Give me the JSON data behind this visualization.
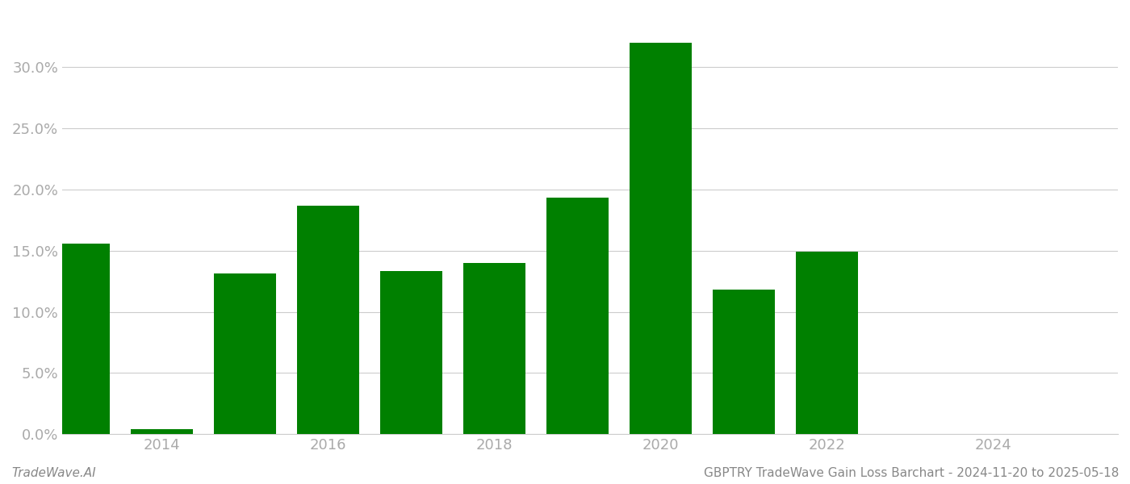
{
  "years": [
    2013,
    2014,
    2015,
    2016,
    2017,
    2018,
    2019,
    2020,
    2021,
    2022,
    2023,
    2024
  ],
  "values": [
    0.156,
    0.004,
    0.131,
    0.187,
    0.133,
    0.14,
    0.193,
    0.32,
    0.118,
    0.149,
    0.0,
    0.0
  ],
  "bar_color": "#008000",
  "background_color": "#ffffff",
  "ylim_max": 0.345,
  "ylabel_ticks": [
    0.0,
    0.05,
    0.1,
    0.15,
    0.2,
    0.25,
    0.3
  ],
  "xtick_positions": [
    2014,
    2016,
    2018,
    2020,
    2022,
    2024
  ],
  "xtick_labels": [
    "2014",
    "2016",
    "2018",
    "2020",
    "2022",
    "2024"
  ],
  "xlim_left": 2012.8,
  "xlim_right": 2025.5,
  "bar_width": 0.75,
  "footer_left": "TradeWave.AI",
  "footer_right": "GBPTRY TradeWave Gain Loss Barchart - 2024-11-20 to 2025-05-18",
  "grid_color": "#cccccc",
  "text_color": "#aaaaaa",
  "footer_color": "#888888",
  "tick_fontsize": 13,
  "footer_fontsize": 11
}
